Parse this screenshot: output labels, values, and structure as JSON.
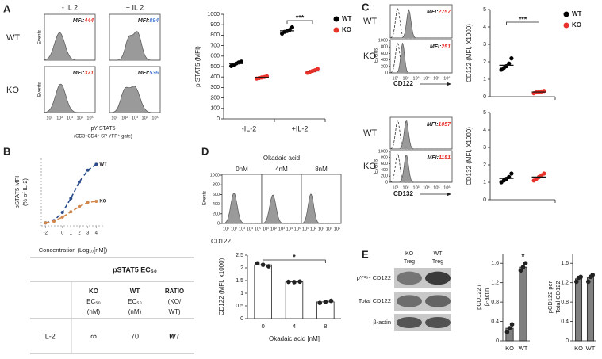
{
  "panel_labels": [
    "A",
    "B",
    "C",
    "D",
    "E"
  ],
  "histograms": {
    "ylabel": "Events",
    "xticks": [
      "10¹",
      "10²",
      "10³",
      "10⁴",
      "10⁵",
      "10⁶"
    ],
    "yticks": [
      0,
      200,
      400,
      600,
      800,
      1000
    ]
  },
  "panel_a": {
    "columns": [
      "- IL 2",
      "+ IL 2"
    ],
    "rows": [
      "WT",
      "KO"
    ],
    "mfi_prefix": "MFI:",
    "mfi": [
      [
        444,
        894
      ],
      [
        371,
        536
      ]
    ],
    "mfi_colors": [
      "#e8322b",
      "#4f7fd6"
    ],
    "xlabel": [
      "pY STAT5",
      "(CD3⁺CD4⁺ SP YFP⁺ gate)"
    ]
  },
  "panel_c": {
    "rows": [
      "WT",
      "KO",
      "WT",
      "KO"
    ],
    "mfi_prefix": "MFI:",
    "mfi": [
      2757,
      251,
      1057,
      1151
    ],
    "mfi_color": "#e8322b",
    "xlabels": [
      "CD122",
      "CD132"
    ]
  },
  "panel_d": {
    "title": "Okadaic acid",
    "columns": [
      "0nM",
      "4nM",
      "8nM"
    ],
    "xlabel": "CD122"
  },
  "panel_e": {
    "lanes": [
      [
        "KO",
        "Treg"
      ],
      [
        "WT",
        "Treg"
      ]
    ],
    "rows": [
      "pY³⁶⁴ CD122",
      "Total CD122",
      "β-actin"
    ]
  },
  "table": {
    "title": "pSTAT5 EC₅₀",
    "columns": [
      [
        "KO",
        "EC₅₀",
        "(nM)"
      ],
      [
        "WT",
        "EC₅₀",
        "(nM)"
      ],
      [
        "RATIO",
        "(KO/",
        "WT)"
      ]
    ],
    "rows": [
      [
        "IL-2",
        "∞",
        70,
        "WT"
      ]
    ]
  },
  "chart_data": [
    {
      "type": "dot",
      "ylabel": "p STAT5 (MFI)",
      "categories": [
        "-IL-2",
        "+IL-2"
      ],
      "ylim": [
        0,
        1000
      ],
      "yticks": [
        0,
        100,
        200,
        300,
        400,
        500,
        600,
        700,
        800,
        900,
        1000
      ],
      "series": [
        {
          "name": "WT",
          "color": "#000000",
          "values": [
            528,
            842
          ],
          "points": [
            [
              505,
              518,
              530,
              540,
              548
            ],
            [
              815,
              832,
              840,
              850,
              875
            ]
          ]
        },
        {
          "name": "KO",
          "color": "#e8322b",
          "values": [
            396,
            458
          ],
          "points": [
            [
              385,
              390,
              396,
              400,
              408
            ],
            [
              440,
              450,
              458,
              465,
              478
            ]
          ]
        }
      ],
      "legend": "right",
      "annotation": "***"
    },
    {
      "type": "line",
      "ylabel": [
        "pSTAT5 MFI",
        "(% of IL-2)"
      ],
      "xlabel": "Concentration (Log₁₀[nM])",
      "x": [
        -2,
        -1,
        0,
        1,
        2,
        3,
        4
      ],
      "xlim": [
        -2.5,
        5
      ],
      "xticks": [
        -2,
        0,
        1,
        2,
        3,
        4
      ],
      "ylim": [
        -5,
        110
      ],
      "series": [
        {
          "name": "WT",
          "color": "#2b4c8c",
          "values": [
            0,
            4,
            18,
            42,
            70,
            90,
            100
          ]
        },
        {
          "name": "KO",
          "color": "#d2864a",
          "values": [
            0,
            3,
            10,
            19,
            28,
            35,
            37
          ]
        }
      ]
    },
    {
      "type": "dot",
      "ylabel": "CD122 (MFI, X1000)",
      "categories": [
        null
      ],
      "ylim": [
        0,
        5
      ],
      "yticks": [
        0,
        1,
        2,
        3,
        4,
        5
      ],
      "series": [
        {
          "name": "WT",
          "color": "#000000",
          "values": [
            1.8
          ],
          "points": [
            [
              1.55,
              1.65,
              1.75,
              1.9,
              2.2
            ]
          ]
        },
        {
          "name": "KO",
          "color": "#e8322b",
          "values": [
            0.27
          ],
          "points": [
            [
              0.2,
              0.25,
              0.27,
              0.3,
              0.33
            ]
          ]
        }
      ],
      "legend": "right",
      "annotation": "***"
    },
    {
      "type": "dot",
      "ylabel": "CD132 (MFI, X1000)",
      "categories": [
        null
      ],
      "ylim": [
        0,
        5
      ],
      "yticks": [
        0,
        1,
        2,
        3,
        4,
        5
      ],
      "series": [
        {
          "name": "WT",
          "color": "#000000",
          "values": [
            1.22
          ],
          "points": [
            [
              1.0,
              1.1,
              1.2,
              1.3,
              1.5
            ]
          ]
        },
        {
          "name": "KO",
          "color": "#e8322b",
          "values": [
            1.3
          ],
          "points": [
            [
              1.1,
              1.2,
              1.3,
              1.4,
              1.5
            ]
          ]
        }
      ]
    },
    {
      "type": "bar",
      "ylabel": "CD122 (MFI, x1000)",
      "xlabel": "Okadaic acid [nM]",
      "categories": [
        "0",
        "4",
        "8"
      ],
      "values": [
        2.12,
        1.45,
        0.66
      ],
      "points": [
        [
          2.18,
          2.12,
          2.06
        ],
        [
          1.45,
          1.44,
          1.46
        ],
        [
          0.62,
          0.66,
          0.7
        ]
      ],
      "color": "#ffffff",
      "ylim": [
        0,
        2.5
      ],
      "yticks": [
        0,
        0.5,
        1,
        1.5,
        2,
        2.5
      ],
      "annotation": "*"
    },
    {
      "type": "bar",
      "ylabel": [
        "pCD122 /",
        "β-actin"
      ],
      "categories": [
        "KO",
        "WT"
      ],
      "values": [
        0.26,
        1.52
      ],
      "points": [
        [
          0.18,
          0.26,
          0.34
        ],
        [
          1.45,
          1.52,
          1.6
        ]
      ],
      "color": "#808080",
      "ylim": [
        0,
        1.8
      ],
      "yticks": [
        0,
        0.4,
        0.8,
        1.2,
        1.6
      ],
      "annotation": "*"
    },
    {
      "type": "bar",
      "ylabel": [
        "pCD122 per",
        "Total CD122"
      ],
      "categories": [
        "KO",
        "WT"
      ],
      "values": [
        1.28,
        1.3
      ],
      "points": [
        [
          1.22,
          1.3,
          1.32
        ],
        [
          1.22,
          1.32,
          1.36
        ]
      ],
      "color": "#808080",
      "ylim": [
        0,
        1.8
      ],
      "yticks": [
        0,
        0.4,
        0.8,
        1.2,
        1.6
      ]
    }
  ]
}
